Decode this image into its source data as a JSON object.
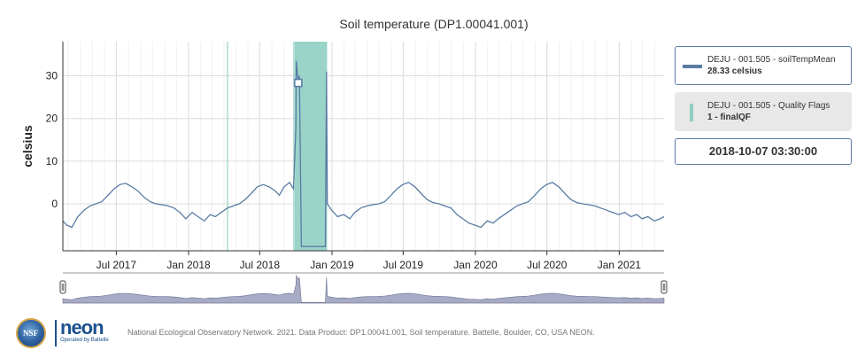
{
  "chart_data": {
    "type": "line",
    "title": "Soil temperature (DP1.00041.001)",
    "ylabel": "celsius",
    "xlabel": "",
    "xlim": [
      "2017-02-15",
      "2021-04-25"
    ],
    "ylim": [
      -11,
      38
    ],
    "y_ticks": [
      0,
      10,
      20,
      30
    ],
    "x_ticks": [
      {
        "date": "2017-07-01",
        "label": "Jul 2017"
      },
      {
        "date": "2018-01-01",
        "label": "Jan 2018"
      },
      {
        "date": "2018-07-01",
        "label": "Jul 2018"
      },
      {
        "date": "2019-01-01",
        "label": "Jan 2019"
      },
      {
        "date": "2019-07-01",
        "label": "Jul 2019"
      },
      {
        "date": "2020-01-01",
        "label": "Jan 2020"
      },
      {
        "date": "2020-07-01",
        "label": "Jul 2020"
      },
      {
        "date": "2021-01-01",
        "label": "Jan 2021"
      }
    ],
    "grid": true,
    "legend_position": "right",
    "series": [
      {
        "name": "DEJU - 001.505 - soilTempMean",
        "color": "#5a7ba3",
        "points": [
          [
            "2017-02-15",
            -4
          ],
          [
            "2017-02-25",
            -5
          ],
          [
            "2017-03-10",
            -5.5
          ],
          [
            "2017-03-25",
            -3
          ],
          [
            "2017-04-10",
            -1.5
          ],
          [
            "2017-04-25",
            -0.5
          ],
          [
            "2017-05-10",
            0
          ],
          [
            "2017-05-25",
            0.5
          ],
          [
            "2017-06-10",
            2
          ],
          [
            "2017-06-25",
            3.5
          ],
          [
            "2017-07-10",
            4.5
          ],
          [
            "2017-07-25",
            4.8
          ],
          [
            "2017-08-10",
            4
          ],
          [
            "2017-08-25",
            3
          ],
          [
            "2017-09-10",
            1.5
          ],
          [
            "2017-09-25",
            0.5
          ],
          [
            "2017-10-10",
            0
          ],
          [
            "2017-10-25",
            -0.2
          ],
          [
            "2017-11-10",
            -0.5
          ],
          [
            "2017-11-25",
            -1
          ],
          [
            "2017-12-10",
            -2
          ],
          [
            "2017-12-25",
            -3.5
          ],
          [
            "2018-01-10",
            -2
          ],
          [
            "2018-01-25",
            -3
          ],
          [
            "2018-02-10",
            -4
          ],
          [
            "2018-02-25",
            -2.5
          ],
          [
            "2018-03-10",
            -3
          ],
          [
            "2018-03-25",
            -2
          ],
          [
            "2018-04-10",
            -1
          ],
          [
            "2018-04-25",
            -0.5
          ],
          [
            "2018-05-10",
            0
          ],
          [
            "2018-05-25",
            1
          ],
          [
            "2018-06-10",
            2.5
          ],
          [
            "2018-06-25",
            4
          ],
          [
            "2018-07-10",
            4.5
          ],
          [
            "2018-07-25",
            4
          ],
          [
            "2018-08-10",
            3
          ],
          [
            "2018-08-20",
            2
          ],
          [
            "2018-09-01",
            4
          ],
          [
            "2018-09-15",
            5
          ],
          [
            "2018-09-25",
            3.5
          ],
          [
            "2018-10-01",
            18
          ],
          [
            "2018-10-02",
            33.5
          ],
          [
            "2018-10-07",
            28.33
          ],
          [
            "2018-10-10",
            30
          ],
          [
            "2018-10-15",
            -10
          ],
          [
            "2018-12-15",
            -10
          ],
          [
            "2018-12-18",
            31
          ],
          [
            "2018-12-20",
            0
          ],
          [
            "2018-12-31",
            -1.5
          ],
          [
            "2019-01-15",
            -3
          ],
          [
            "2019-01-31",
            -2.5
          ],
          [
            "2019-02-15",
            -3.5
          ],
          [
            "2019-02-28",
            -2
          ],
          [
            "2019-03-15",
            -1
          ],
          [
            "2019-03-31",
            -0.5
          ],
          [
            "2019-04-15",
            -0.2
          ],
          [
            "2019-04-30",
            0
          ],
          [
            "2019-05-15",
            0.5
          ],
          [
            "2019-05-31",
            2
          ],
          [
            "2019-06-15",
            3.5
          ],
          [
            "2019-06-30",
            4.5
          ],
          [
            "2019-07-15",
            5
          ],
          [
            "2019-07-31",
            4
          ],
          [
            "2019-08-15",
            2.5
          ],
          [
            "2019-08-31",
            1
          ],
          [
            "2019-09-15",
            0.3
          ],
          [
            "2019-09-30",
            0
          ],
          [
            "2019-10-15",
            -0.5
          ],
          [
            "2019-10-31",
            -1
          ],
          [
            "2019-11-15",
            -2.5
          ],
          [
            "2019-11-30",
            -3.5
          ],
          [
            "2019-12-15",
            -4.5
          ],
          [
            "2019-12-31",
            -5
          ],
          [
            "2020-01-15",
            -5.5
          ],
          [
            "2020-01-31",
            -4
          ],
          [
            "2020-02-15",
            -4.5
          ],
          [
            "2020-02-28",
            -3.5
          ],
          [
            "2020-03-15",
            -2.5
          ],
          [
            "2020-03-31",
            -1.5
          ],
          [
            "2020-04-15",
            -0.5
          ],
          [
            "2020-04-30",
            0
          ],
          [
            "2020-05-15",
            0.5
          ],
          [
            "2020-05-31",
            2
          ],
          [
            "2020-06-15",
            3.5
          ],
          [
            "2020-06-30",
            4.5
          ],
          [
            "2020-07-15",
            5
          ],
          [
            "2020-07-31",
            4
          ],
          [
            "2020-08-15",
            2.5
          ],
          [
            "2020-08-31",
            1
          ],
          [
            "2020-09-15",
            0.3
          ],
          [
            "2020-09-30",
            0
          ],
          [
            "2020-10-15",
            -0.2
          ],
          [
            "2020-10-31",
            -0.5
          ],
          [
            "2020-11-15",
            -1
          ],
          [
            "2020-11-30",
            -1.5
          ],
          [
            "2020-12-15",
            -2
          ],
          [
            "2020-12-31",
            -2.5
          ],
          [
            "2021-01-15",
            -2
          ],
          [
            "2021-01-31",
            -3
          ],
          [
            "2021-02-15",
            -2.5
          ],
          [
            "2021-02-28",
            -3.5
          ],
          [
            "2021-03-15",
            -3
          ],
          [
            "2021-03-31",
            -4
          ],
          [
            "2021-04-15",
            -3.5
          ],
          [
            "2021-04-25",
            -3
          ]
        ]
      }
    ],
    "quality_flags": {
      "name": "DEJU - 001.505 - Quality Flags",
      "value": "1 - finalQF",
      "color": "#8fcfc2",
      "ranges": [
        [
          "2018-09-28",
          "2018-12-17"
        ]
      ],
      "lines": [
        "2018-04-10",
        "2018-09-26",
        "2018-12-18"
      ]
    },
    "hover": {
      "date": "2018-10-07",
      "value": 28.33,
      "series_label": "DEJU - 001.505 - soilTempMean",
      "value_text": "28.33 celsius",
      "flag_label": "DEJU - 001.505 - Quality Flags",
      "flag_value": "1 - finalQF",
      "timestamp": "2018-10-07 03:30:00"
    }
  },
  "footer": {
    "nsf_text": "NSF",
    "neon_text": "neon",
    "neon_sub": "Operated by Battelle",
    "citation": "National Ecological Observatory Network. 2021. Data Product: DP1.00041.001, Soil temperature. Battelle, Boulder, CO, USA NEON."
  }
}
